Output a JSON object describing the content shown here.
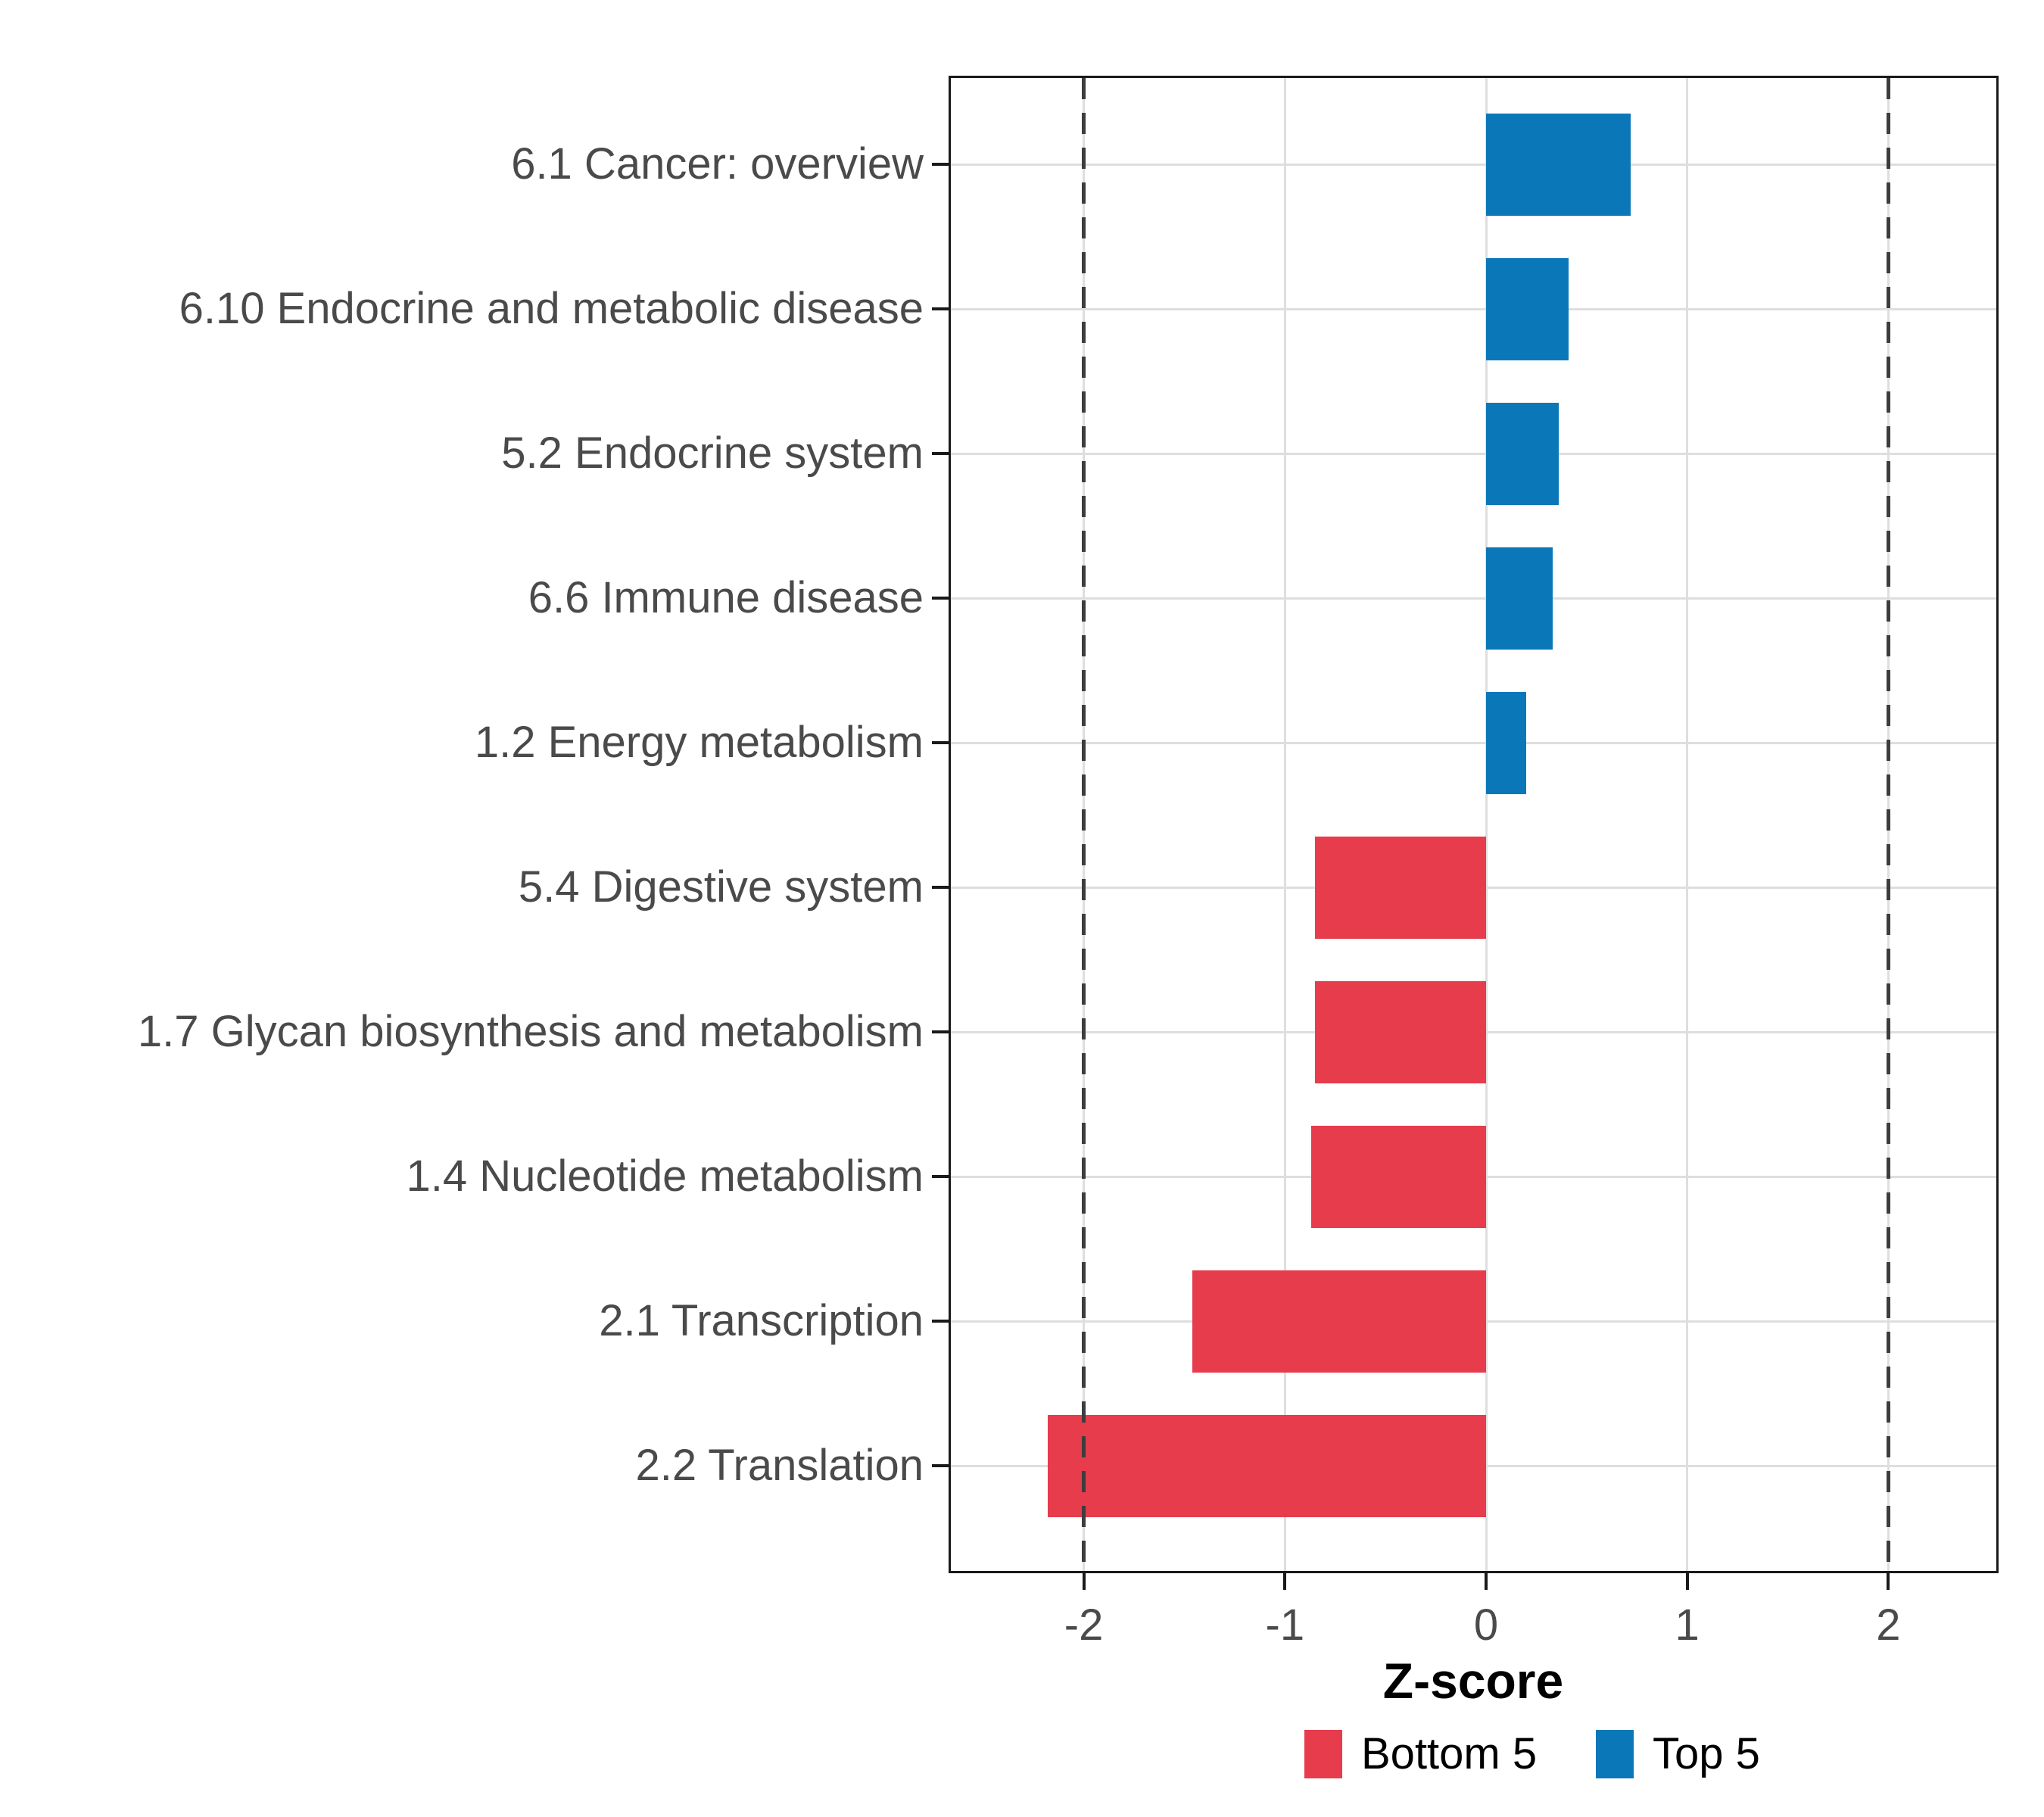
{
  "chart_data": {
    "type": "bar",
    "orientation": "horizontal",
    "title": "",
    "xlabel": "Z-score",
    "ylabel": "",
    "categories": [
      "6.1 Cancer: overview",
      "6.10 Endocrine and metabolic disease",
      "5.2 Endocrine system",
      "6.6 Immune disease",
      "1.2 Energy metabolism",
      "5.4 Digestive system",
      "1.7 Glycan biosynthesis and metabolism",
      "1.4 Nucleotide metabolism",
      "2.1 Transcription",
      "2.2 Translation"
    ],
    "values": [
      0.72,
      0.41,
      0.36,
      0.33,
      0.2,
      -0.85,
      -0.85,
      -0.87,
      -1.46,
      -2.18
    ],
    "groups": [
      "Top 5",
      "Top 5",
      "Top 5",
      "Top 5",
      "Top 5",
      "Bottom 5",
      "Bottom 5",
      "Bottom 5",
      "Bottom 5",
      "Bottom 5"
    ],
    "x_ticks": [
      -2,
      -1,
      0,
      1,
      2
    ],
    "x_tick_labels": [
      "-2",
      "-1",
      "0",
      "1",
      "2"
    ],
    "xlim": [
      -2.66,
      2.55
    ],
    "reference_lines": {
      "values": [
        -2,
        2
      ],
      "style": "dashed"
    },
    "grid": {
      "vertical": true,
      "horizontal": true,
      "legend_position": "bottom"
    },
    "legend": {
      "entries": [
        {
          "label": "Bottom 5",
          "color": "#e63c4c"
        },
        {
          "label": "Top 5",
          "color": "#0a78b8"
        }
      ]
    },
    "colors": {
      "top5_bar": "#0a78b8",
      "bottom5_bar": "#e63c4c",
      "gridline": "#dedede",
      "reference_line": "#3d3d3d",
      "axis_text": "#4a4a4a",
      "axis_line": "#1a1a1a",
      "axis_title_text": "#000000",
      "background": "#ffffff"
    }
  }
}
